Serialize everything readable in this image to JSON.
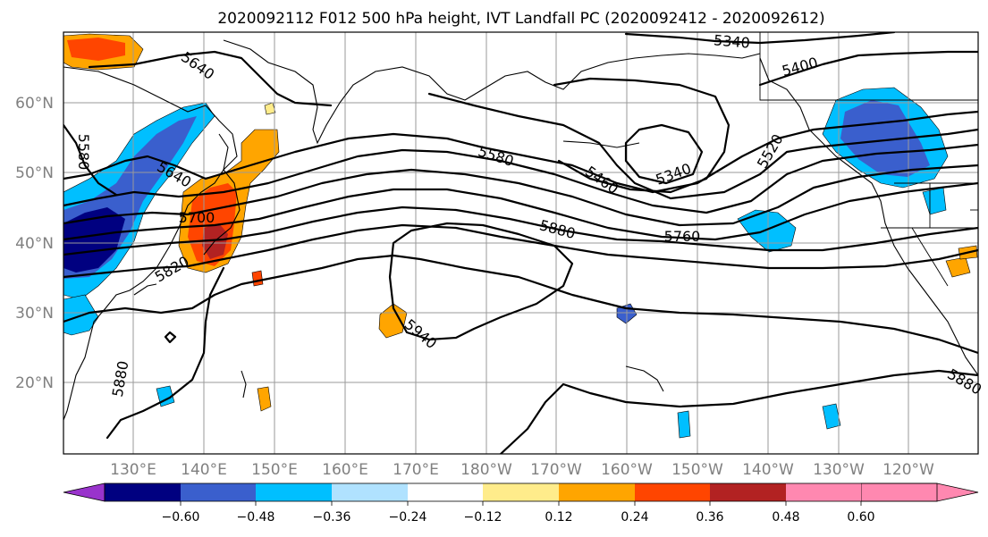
{
  "title": "2020092112 F012 500 hPa height, IVT Landfall PC (2020092412 - 2020092612)",
  "map": {
    "lat_labels": [
      "60°N",
      "50°N",
      "40°N",
      "30°N",
      "20°N"
    ],
    "lon_labels": [
      "130°E",
      "140°E",
      "150°E",
      "160°E",
      "170°E",
      "180°W",
      "170°W",
      "160°W",
      "150°W",
      "140°W",
      "130°W",
      "120°W"
    ]
  },
  "contours": {
    "height_labels": [
      "5340",
      "5400",
      "5640",
      "5580",
      "5580",
      "5640",
      "5700",
      "5820",
      "5460",
      "5340",
      "5520",
      "5880",
      "5760",
      "5940",
      "5880",
      "5880"
    ]
  },
  "colorbar": {
    "colors": [
      "#9933cc",
      "#000080",
      "#3a5fcd",
      "#00bfff",
      "#b0e2ff",
      "#ffffff",
      "#ffec8b",
      "#ffa500",
      "#ff4500",
      "#b22222",
      "#ff88b0"
    ],
    "tick_labels": [
      "−0.60",
      "−0.48",
      "−0.36",
      "−0.24",
      "−0.12",
      "0.12",
      "0.24",
      "0.36",
      "0.48",
      "0.60"
    ]
  }
}
